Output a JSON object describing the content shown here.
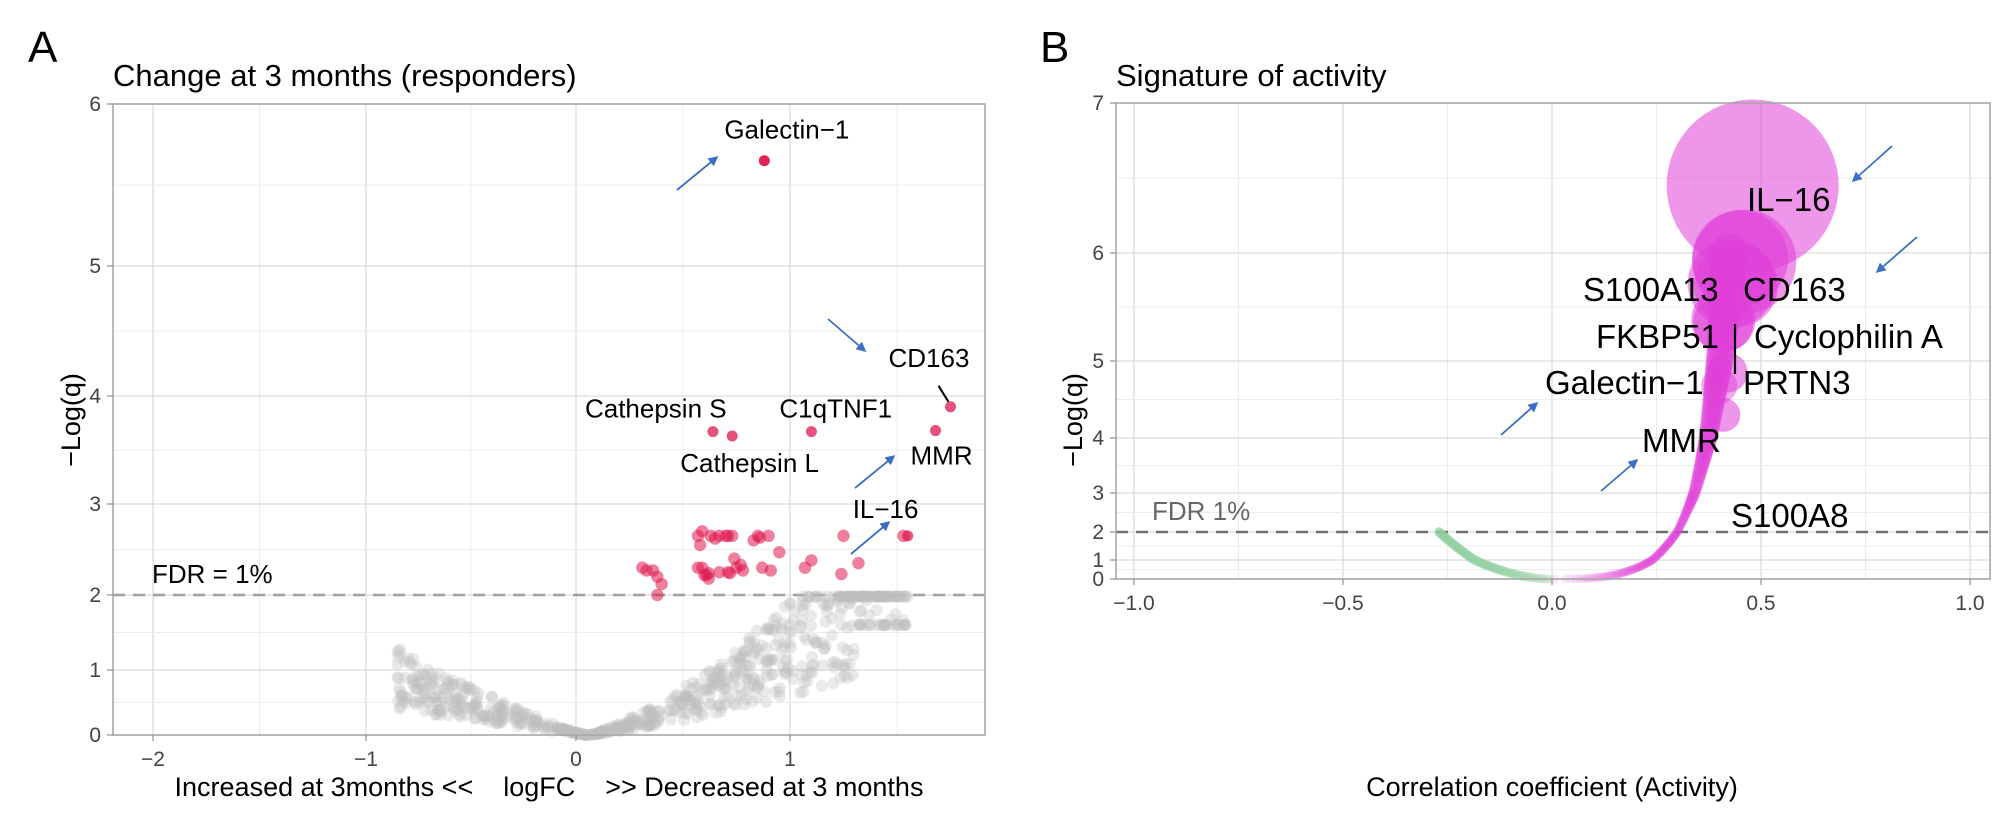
{
  "figure": {
    "panels": [
      "A",
      "B"
    ]
  },
  "chart_data": [
    {
      "panel": "A",
      "type": "scatter",
      "title": "Change at 3 months (responders)",
      "xlabel": "Increased at 3months <<    logFC    >> Decreased at 3 months",
      "ylabel": "−Log(q)",
      "xlim": [
        -2.2,
        1.95
      ],
      "ylim": [
        0,
        6
      ],
      "x_ticks": [
        -2,
        -1,
        0,
        1
      ],
      "x_tick_labels": [
        "−2",
        "−1",
        "0",
        "1"
      ],
      "y_ticks": [
        0,
        1,
        2,
        3,
        4,
        5,
        6
      ],
      "y_tick_labels": [
        "0",
        "1",
        "2",
        "3",
        "4",
        "5",
        "6"
      ],
      "y_scale": "expanded-toward-top (non-linear)",
      "grid": true,
      "threshold": {
        "y": 2,
        "label": "FDR = 1%",
        "style": "dashed"
      },
      "colors": {
        "significant": "#e0174f",
        "not_significant": "#bdbdbd",
        "arrow": "#3b6fc6"
      },
      "labeled_points": [
        {
          "label": "Galectin−1",
          "x": 0.88,
          "y": 5.65,
          "arrow": true
        },
        {
          "label": "CD163",
          "x": 1.75,
          "y": 3.9,
          "arrow": true
        },
        {
          "label": "Cathepsin S",
          "x": 0.64,
          "y": 3.67
        },
        {
          "label": "Cathepsin L",
          "x": 0.73,
          "y": 3.63
        },
        {
          "label": "C1qTNF1",
          "x": 1.1,
          "y": 3.67
        },
        {
          "label": "MMR",
          "x": 1.68,
          "y": 3.68,
          "arrow": true
        },
        {
          "label": "IL−16",
          "x": 1.55,
          "y": 2.65,
          "arrow": true
        }
      ],
      "significant_points": [
        [
          0.31,
          2.3
        ],
        [
          0.33,
          2.27
        ],
        [
          0.36,
          2.27
        ],
        [
          0.38,
          2.2
        ],
        [
          0.4,
          2.12
        ],
        [
          0.38,
          2.0
        ],
        [
          0.57,
          2.65
        ],
        [
          0.59,
          2.7
        ],
        [
          0.58,
          2.55
        ],
        [
          0.63,
          2.65
        ],
        [
          0.65,
          2.62
        ],
        [
          0.67,
          2.65
        ],
        [
          0.7,
          2.65
        ],
        [
          0.71,
          2.65
        ],
        [
          0.73,
          2.65
        ],
        [
          0.57,
          2.3
        ],
        [
          0.59,
          2.3
        ],
        [
          0.6,
          2.22
        ],
        [
          0.61,
          2.22
        ],
        [
          0.62,
          2.24
        ],
        [
          0.62,
          2.18
        ],
        [
          0.67,
          2.25
        ],
        [
          0.71,
          2.25
        ],
        [
          0.72,
          2.24
        ],
        [
          0.74,
          2.4
        ],
        [
          0.75,
          2.3
        ],
        [
          0.77,
          2.33
        ],
        [
          0.78,
          2.27
        ],
        [
          0.83,
          2.6
        ],
        [
          0.85,
          2.65
        ],
        [
          0.86,
          2.63
        ],
        [
          0.9,
          2.65
        ],
        [
          0.87,
          2.3
        ],
        [
          0.91,
          2.27
        ],
        [
          0.95,
          2.47
        ],
        [
          1.07,
          2.3
        ],
        [
          1.1,
          2.38
        ],
        [
          1.25,
          2.65
        ],
        [
          1.24,
          2.23
        ],
        [
          1.32,
          2.35
        ],
        [
          1.53,
          2.65
        ]
      ],
      "nonsignificant_summary": "~800 grey points forming a V shape centred near logFC 0.1; left arm reaching x≈−0.85 at y≈1.1, right arm reaching x≈1.5 at y≈2"
    },
    {
      "panel": "B",
      "type": "scatter",
      "title": "Signature of activity",
      "xlabel": "Correlation coefficient (Activity)",
      "ylabel": "−Log(q)",
      "xlim": [
        -1.05,
        1.05
      ],
      "ylim": [
        0,
        7
      ],
      "x_ticks": [
        -1.0,
        -0.5,
        0.0,
        0.5,
        1.0
      ],
      "x_tick_labels": [
        "−1.0",
        "−0.5",
        "0.0",
        "0.5",
        "1.0"
      ],
      "y_ticks": [
        0,
        1,
        2,
        3,
        4,
        5,
        6,
        7
      ],
      "y_tick_labels": [
        "0",
        "1",
        "2",
        "3",
        "4",
        "5",
        "6",
        "7"
      ],
      "y_scale": "expanded-toward-top (non-linear)",
      "grid": true,
      "threshold": {
        "y": 2,
        "label": "FDR 1%",
        "style": "dashed"
      },
      "colors": {
        "positive": "#e040d8",
        "negative": "#8fcf9f",
        "arrow": "#3b6fc6"
      },
      "point_size": "bubble radius proportional to −Log(q)",
      "labeled_points": [
        {
          "label": "IL−16",
          "x": 0.48,
          "y": 6.45,
          "arrow": true
        },
        {
          "label": "S100A13",
          "x": 0.45,
          "y": 5.95
        },
        {
          "label": "CD163",
          "x": 0.46,
          "y": 5.92,
          "arrow": true
        },
        {
          "label": "FKBP51",
          "x": 0.43,
          "y": 5.72
        },
        {
          "label": "Cyclophilin A",
          "x": 0.44,
          "y": 5.7
        },
        {
          "label": "Galectin−1",
          "x": 0.41,
          "y": 5.38,
          "arrow": true
        },
        {
          "label": "PRTN3",
          "x": 0.41,
          "y": 5.36
        },
        {
          "label": "MMR",
          "x": 0.42,
          "y": 4.85,
          "arrow": true
        },
        {
          "label": "S100A8",
          "x": 0.41,
          "y": 4.3
        }
      ],
      "curve_summary": "points follow a U-shaped curve: negative correlations down to −0.27 (max −Log(q)≈2, green), positive correlations up to ≈0.48 (max −Log(q)≈6.5, magenta)"
    }
  ]
}
